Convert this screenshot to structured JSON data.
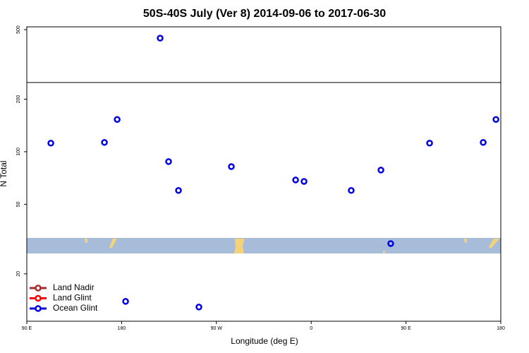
{
  "chart_data": {
    "type": "scatter",
    "title": "50S-40S July (Ver 8)   2014-09-06 to 2017-06-30",
    "x_label": "Longitude (deg E)",
    "y_label": "N Total",
    "log_y": true,
    "xlim": [
      90,
      540
    ],
    "ylim": [
      10.7,
      519
    ],
    "xticks": [
      {
        "value": 90,
        "label": "90 E"
      },
      180,
      {
        "value": 270,
        "label": "90 W"
      },
      {
        "value": 360,
        "label": "0"
      },
      {
        "value": 450,
        "label": "90 E"
      },
      {
        "value": 540,
        "label": "180"
      }
    ],
    "yticks": [
      20,
      50,
      100,
      200,
      500
    ],
    "hline": 249,
    "legend": "bottom-left",
    "series": [
      {
        "name": "Land Nadir",
        "color": "#a52a2a",
        "x": [],
        "values": []
      },
      {
        "name": "Land Glint",
        "color": "#ff0000",
        "x": [],
        "values": []
      },
      {
        "name": "Ocean Glint",
        "color": "#0000e0",
        "x": [
          112.8,
          163.7,
          175.8,
          183.8,
          216.6,
          224.6,
          234,
          253.4,
          284.2,
          345.2,
          353.2,
          398,
          426.2,
          435.5,
          472.4,
          523.3,
          535.4
        ],
        "values": [
          112,
          113,
          153,
          13.9,
          447,
          87.8,
          60,
          12.9,
          82.2,
          68.9,
          67.6,
          60,
          78.5,
          29.8,
          112,
          113,
          153
        ]
      }
    ]
  }
}
